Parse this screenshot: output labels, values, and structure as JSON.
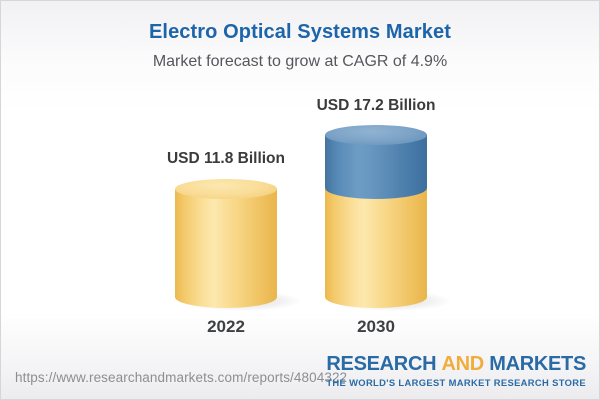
{
  "header": {
    "title": "Electro Optical Systems Market",
    "subtitle": "Market forecast to grow at CAGR of 4.9%"
  },
  "chart_data": {
    "type": "bar",
    "bar_style": "3d-cylinder",
    "title": "Electro Optical Systems Market",
    "subtitle": "Market forecast to grow at CAGR of 4.9%",
    "categories": [
      "2022",
      "2030"
    ],
    "values": [
      11.8,
      17.2
    ],
    "unit": "USD Billion",
    "data_labels": [
      "USD 11.8 Billion",
      "USD 17.2 Billion"
    ],
    "cagr_percent": 4.9,
    "segments": [
      {
        "category": "2022",
        "base": 11.8,
        "growth": 0
      },
      {
        "category": "2030",
        "base": 11.8,
        "growth": 5.4
      }
    ],
    "colors": {
      "base_segment": "#f6cf7b",
      "growth_segment": "#5585b2",
      "title": "#1d65ab",
      "subtitle": "#56575b",
      "labels": "#3b3b3d"
    },
    "legend": "none",
    "axes": "none",
    "grid": false
  },
  "bars": [
    {
      "value_label": "USD 11.8 Billion",
      "year": "2022"
    },
    {
      "value_label": "USD 17.2 Billion",
      "year": "2030"
    }
  ],
  "footer": {
    "url": "https://www.researchandmarkets.com/reports/4804322",
    "logo": {
      "word1": "RESEARCH",
      "word2": "AND",
      "word3": "MARKETS",
      "tagline": "THE WORLD'S LARGEST MARKET RESEARCH STORE",
      "blue": "#2a6ba6",
      "gold": "#f0ad3d"
    }
  }
}
